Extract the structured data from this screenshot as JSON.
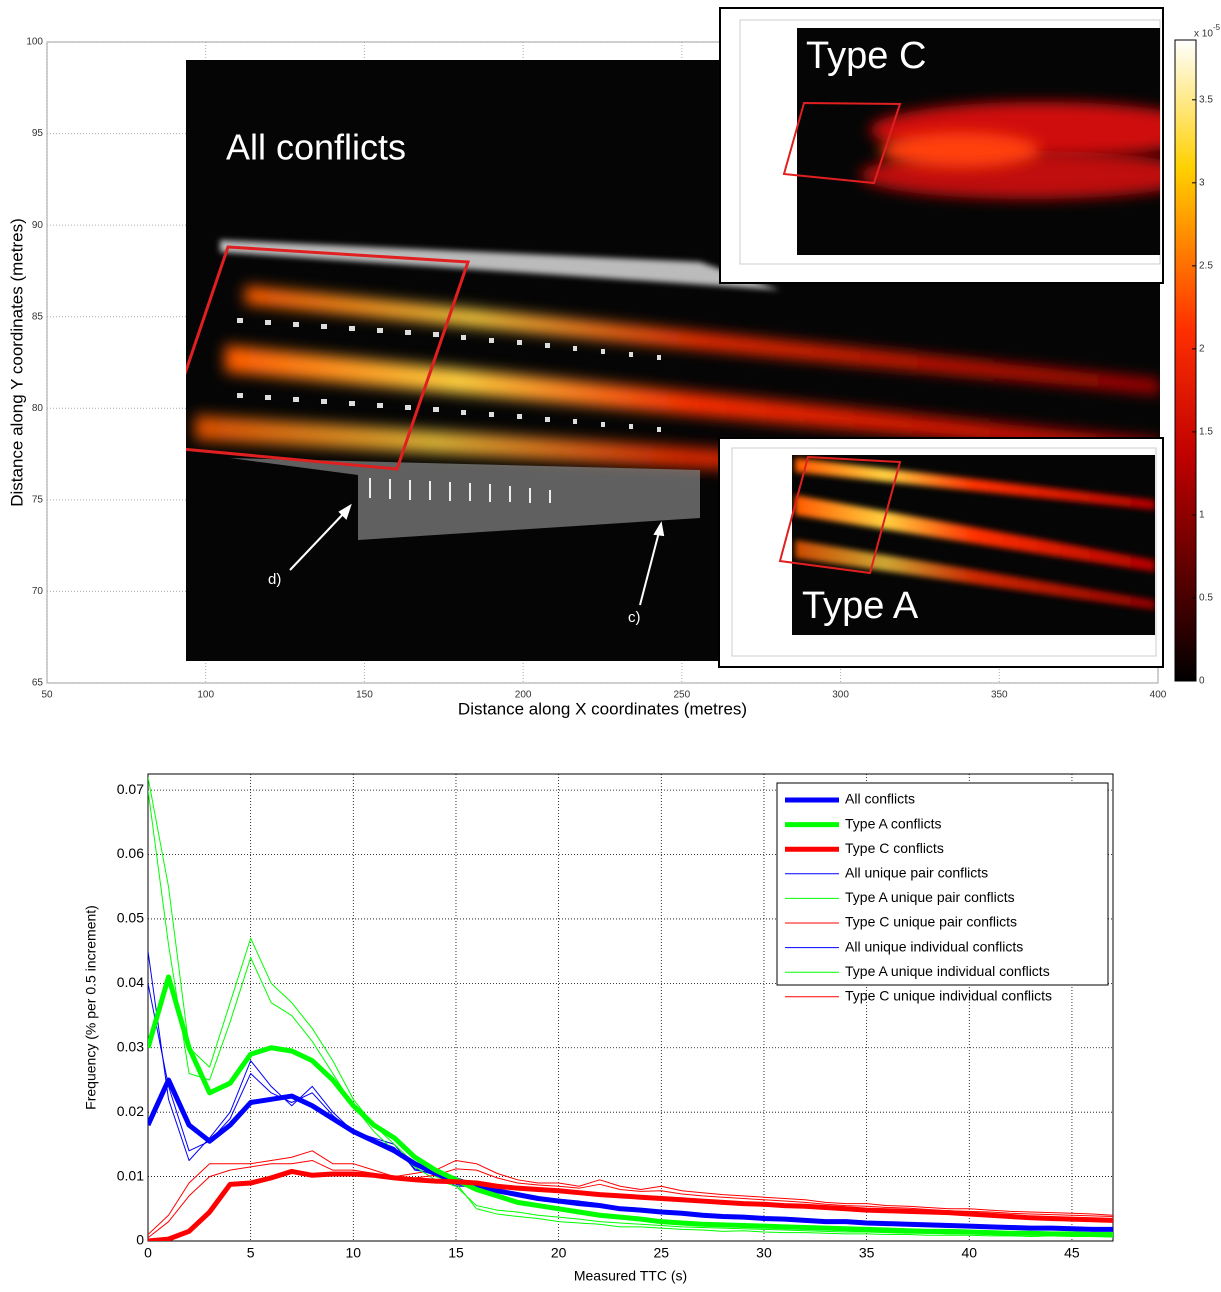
{
  "chart_data": [
    {
      "type": "heatmap",
      "xlabel": "Distance along X coordinates (metres)",
      "ylabel": "Distance along Y coordinates (metres)",
      "xlim": [
        50,
        400
      ],
      "xticks": [
        50,
        100,
        150,
        200,
        250,
        300,
        350,
        400
      ],
      "ylim": [
        65,
        100
      ],
      "yticks": [
        65,
        70,
        75,
        80,
        85,
        90,
        95,
        100
      ],
      "grid": true,
      "annotations": [
        "All conflicts",
        "Type C",
        "Type A",
        "d)",
        "c)"
      ],
      "colorbar": {
        "clim": [
          0,
          3.86
        ],
        "ticks": [
          0,
          0.5,
          1,
          1.5,
          2,
          2.5,
          3,
          3.5
        ],
        "label": "x 10",
        "exponent": "-5"
      }
    },
    {
      "type": "line",
      "xlabel": "Measured TTC (s)",
      "ylabel": "Frequency (% per 0.5 increment)",
      "xlim": [
        0,
        47
      ],
      "xticks": [
        0,
        5,
        10,
        15,
        20,
        25,
        30,
        35,
        40,
        45
      ],
      "ylim": [
        0,
        0.0725
      ],
      "yticks": [
        0,
        0.01,
        0.02,
        0.03,
        0.04,
        0.05,
        0.06,
        0.07
      ],
      "grid": true,
      "legend": "upper right",
      "x": [
        0,
        1,
        2,
        3,
        4,
        5,
        6,
        7,
        8,
        9,
        10,
        11,
        12,
        13,
        14,
        15,
        16,
        17,
        18,
        19,
        20,
        21,
        22,
        23,
        24,
        25,
        26,
        27,
        28,
        29,
        30,
        31,
        32,
        33,
        34,
        35,
        36,
        37,
        38,
        39,
        40,
        41,
        42,
        43,
        44,
        45,
        46,
        47
      ],
      "series": [
        {
          "name": "All conflicts",
          "color": "#0000ff",
          "width": 5,
          "values": [
            0.018,
            0.025,
            0.018,
            0.0155,
            0.018,
            0.0215,
            0.022,
            0.0225,
            0.021,
            0.019,
            0.017,
            0.0155,
            0.014,
            0.012,
            0.0105,
            0.0095,
            0.0085,
            0.0078,
            0.0072,
            0.0066,
            0.0062,
            0.0058,
            0.0055,
            0.005,
            0.0048,
            0.0045,
            0.0043,
            0.004,
            0.0038,
            0.0037,
            0.0035,
            0.0034,
            0.0032,
            0.003,
            0.003,
            0.0028,
            0.0027,
            0.0026,
            0.0025,
            0.0024,
            0.0023,
            0.0022,
            0.0021,
            0.002,
            0.002,
            0.0019,
            0.0018,
            0.0018
          ]
        },
        {
          "name": "Type A conflicts",
          "color": "#00ff00",
          "width": 5,
          "values": [
            0.03,
            0.041,
            0.03,
            0.023,
            0.0245,
            0.029,
            0.03,
            0.0295,
            0.028,
            0.025,
            0.021,
            0.018,
            0.016,
            0.013,
            0.011,
            0.0095,
            0.008,
            0.007,
            0.006,
            0.0055,
            0.005,
            0.0045,
            0.004,
            0.0037,
            0.0034,
            0.003,
            0.0028,
            0.0026,
            0.0025,
            0.0024,
            0.0023,
            0.0022,
            0.0021,
            0.002,
            0.0019,
            0.0018,
            0.0017,
            0.0016,
            0.0015,
            0.0015,
            0.0014,
            0.0013,
            0.0012,
            0.0012,
            0.0011,
            0.0011,
            0.001,
            0.001
          ]
        },
        {
          "name": "Type C conflicts",
          "color": "#ff0000",
          "width": 5,
          "values": [
            0,
            0.0003,
            0.0015,
            0.0045,
            0.0088,
            0.009,
            0.0098,
            0.0108,
            0.0102,
            0.0104,
            0.0104,
            0.0102,
            0.0098,
            0.0095,
            0.0093,
            0.0092,
            0.009,
            0.0085,
            0.0082,
            0.008,
            0.0078,
            0.0075,
            0.0072,
            0.007,
            0.0068,
            0.0066,
            0.0064,
            0.0062,
            0.006,
            0.0058,
            0.0057,
            0.0055,
            0.0054,
            0.0052,
            0.005,
            0.0048,
            0.0047,
            0.0046,
            0.0045,
            0.0044,
            0.0042,
            0.004,
            0.0038,
            0.0036,
            0.0035,
            0.0034,
            0.0033,
            0.0032
          ]
        },
        {
          "name": "All unique pair conflicts",
          "color": "#0000ff",
          "width": 1,
          "values": [
            0.045,
            0.022,
            0.0125,
            0.016,
            0.02,
            0.028,
            0.024,
            0.021,
            0.024,
            0.02,
            0.017,
            0.016,
            0.015,
            0.011,
            0.0105,
            0.0085,
            0.0085,
            0.008,
            0.0075,
            0.0068,
            0.0065,
            0.0062,
            0.0058,
            0.0052,
            0.005,
            0.0045,
            0.0044,
            0.0041,
            0.0039,
            0.0036,
            0.0036,
            0.0033,
            0.0032,
            0.0031,
            0.0029,
            0.0028,
            0.0028,
            0.0026,
            0.0025,
            0.0025,
            0.0022,
            0.0023,
            0.0021,
            0.0019,
            0.002,
            0.0019,
            0.0018,
            0.0017
          ]
        },
        {
          "name": "Type A unique pair conflicts",
          "color": "#00ff00",
          "width": 1,
          "values": [
            0.072,
            0.055,
            0.03,
            0.027,
            0.037,
            0.047,
            0.04,
            0.037,
            0.033,
            0.028,
            0.022,
            0.018,
            0.015,
            0.012,
            0.01,
            0.009,
            0.005,
            0.0042,
            0.0038,
            0.0035,
            0.003,
            0.0028,
            0.0026,
            0.0022,
            0.0022,
            0.002,
            0.0018,
            0.0017,
            0.0015,
            0.0016,
            0.0014,
            0.0013,
            0.0013,
            0.0012,
            0.0011,
            0.0011,
            0.001,
            0.001,
            0.0009,
            0.0009,
            0.0009,
            0.0008,
            0.0008,
            0.0007,
            0.0008,
            0.0007,
            0.0007,
            0.0006
          ]
        },
        {
          "name": "Type C unique pair conflicts",
          "color": "#ff0000",
          "width": 1,
          "values": [
            0.001,
            0.004,
            0.009,
            0.012,
            0.012,
            0.012,
            0.0125,
            0.013,
            0.014,
            0.012,
            0.012,
            0.011,
            0.01,
            0.0105,
            0.011,
            0.0125,
            0.012,
            0.0105,
            0.0095,
            0.009,
            0.009,
            0.0085,
            0.0095,
            0.0085,
            0.008,
            0.0085,
            0.0078,
            0.0075,
            0.0072,
            0.007,
            0.0068,
            0.0066,
            0.0064,
            0.006,
            0.0058,
            0.0058,
            0.0055,
            0.0054,
            0.0052,
            0.005,
            0.005,
            0.0048,
            0.0046,
            0.0045,
            0.0044,
            0.0043,
            0.0042,
            0.004
          ]
        },
        {
          "name": "All unique individual conflicts",
          "color": "#0000ff",
          "width": 1,
          "values": [
            0.04,
            0.024,
            0.014,
            0.0155,
            0.019,
            0.026,
            0.023,
            0.0215,
            0.023,
            0.0195,
            0.0168,
            0.0158,
            0.0145,
            0.0112,
            0.0102,
            0.0088,
            0.0083,
            0.0079,
            0.0074,
            0.0067,
            0.0063,
            0.006,
            0.0057,
            0.0051,
            0.0049,
            0.0046,
            0.0043,
            0.004,
            0.0038,
            0.0037,
            0.0035,
            0.0034,
            0.0031,
            0.003,
            0.003,
            0.0027,
            0.0027,
            0.0025,
            0.0025,
            0.0023,
            0.0023,
            0.0021,
            0.0021,
            0.002,
            0.0019,
            0.0019,
            0.0017,
            0.0017
          ]
        },
        {
          "name": "Type A unique individual conflicts",
          "color": "#00ff00",
          "width": 1,
          "values": [
            0.07,
            0.046,
            0.026,
            0.025,
            0.034,
            0.044,
            0.037,
            0.035,
            0.031,
            0.026,
            0.021,
            0.017,
            0.014,
            0.0115,
            0.0095,
            0.0085,
            0.0055,
            0.0048,
            0.0045,
            0.004,
            0.0037,
            0.0034,
            0.003,
            0.0028,
            0.0026,
            0.0024,
            0.0022,
            0.0021,
            0.002,
            0.0019,
            0.0018,
            0.0017,
            0.0016,
            0.0015,
            0.0014,
            0.0014,
            0.0013,
            0.0012,
            0.0012,
            0.0011,
            0.0011,
            0.001,
            0.001,
            0.0009,
            0.0009,
            0.0009,
            0.0008,
            0.0008
          ]
        },
        {
          "name": "Type C unique individual conflicts",
          "color": "#ff0000",
          "width": 1,
          "values": [
            0.0005,
            0.003,
            0.007,
            0.01,
            0.011,
            0.0115,
            0.012,
            0.012,
            0.0125,
            0.011,
            0.011,
            0.0105,
            0.0098,
            0.0098,
            0.0102,
            0.0112,
            0.011,
            0.0098,
            0.009,
            0.0087,
            0.0085,
            0.0082,
            0.0088,
            0.008,
            0.0077,
            0.0078,
            0.0073,
            0.007,
            0.0068,
            0.0066,
            0.0064,
            0.0062,
            0.006,
            0.0057,
            0.0055,
            0.0054,
            0.0052,
            0.0051,
            0.0049,
            0.0047,
            0.0046,
            0.0045,
            0.0043,
            0.0042,
            0.0041,
            0.004,
            0.0039,
            0.0038
          ]
        }
      ]
    }
  ]
}
